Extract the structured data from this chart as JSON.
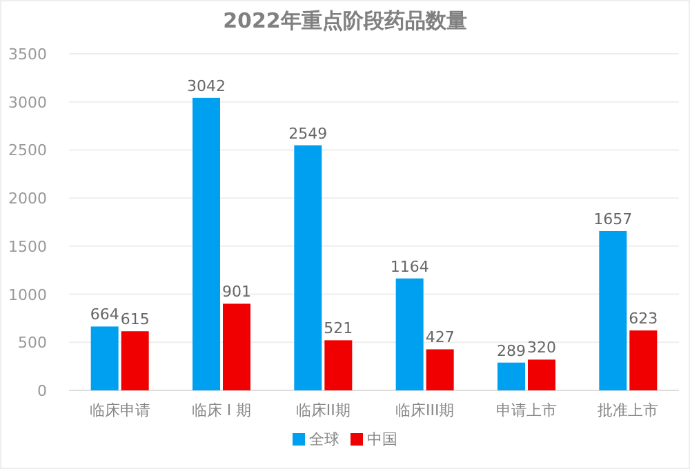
{
  "chart_data": {
    "type": "bar",
    "title": "2022年重点阶段药品数量",
    "categories": [
      "临床申请",
      "临床 I 期",
      "临床II期",
      "临床III期",
      "申请上市",
      "批准上市"
    ],
    "series": [
      {
        "name": "全球",
        "color": "#00a0f0",
        "values": [
          664,
          3042,
          2549,
          1164,
          289,
          1657
        ]
      },
      {
        "name": "中国",
        "color": "#f00000",
        "values": [
          615,
          901,
          521,
          427,
          320,
          623
        ]
      }
    ],
    "ylim": [
      0,
      3500
    ],
    "yticks": [
      0,
      500,
      1000,
      1500,
      2000,
      2500,
      3000,
      3500
    ],
    "grid": "y",
    "legend": "bottom",
    "data_labels": true
  }
}
